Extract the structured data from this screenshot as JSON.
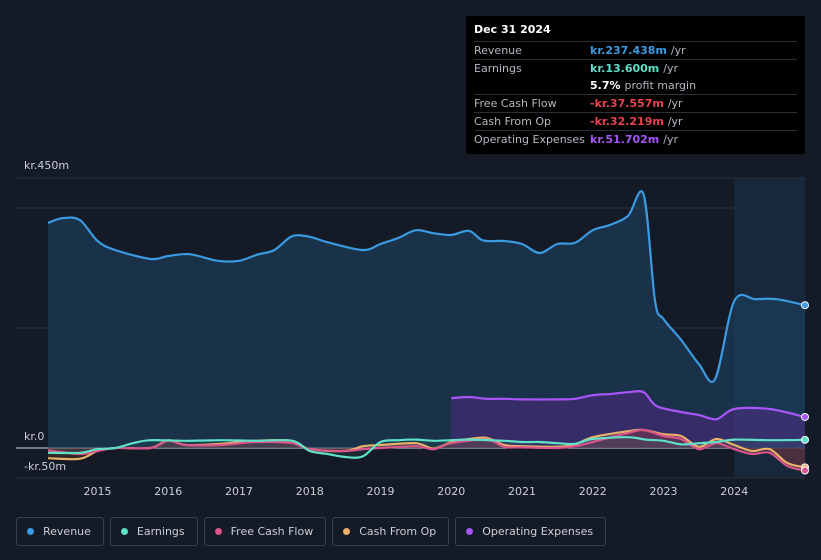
{
  "tooltip": {
    "date": "Dec 31 2024",
    "rows": [
      {
        "label": "Revenue",
        "value": "kr.237.438m",
        "unit": "/yr",
        "color": "#3b9ae1"
      },
      {
        "label": "Earnings",
        "value": "kr.13.600m",
        "unit": "/yr",
        "color": "#5fe0c8"
      },
      {
        "label": "",
        "value": "5.7%",
        "unit": "profit margin",
        "color": "#ffffff"
      },
      {
        "label": "Free Cash Flow",
        "value": "-kr.37.557m",
        "unit": "/yr",
        "color": "#e8434e"
      },
      {
        "label": "Cash From Op",
        "value": "-kr.32.219m",
        "unit": "/yr",
        "color": "#e8434e"
      },
      {
        "label": "Operating Expenses",
        "value": "kr.51.702m",
        "unit": "/yr",
        "color": "#a855f7"
      }
    ]
  },
  "legend": [
    {
      "label": "Revenue",
      "color": "#3b9ae1"
    },
    {
      "label": "Earnings",
      "color": "#5fe0c8"
    },
    {
      "label": "Free Cash Flow",
      "color": "#d9548a"
    },
    {
      "label": "Cash From Op",
      "color": "#e9b06a"
    },
    {
      "label": "Operating Expenses",
      "color": "#a855f7"
    }
  ],
  "chart_data": {
    "type": "line",
    "y_axis_labels": [
      "kr.450m",
      "kr.0",
      "-kr.50m"
    ],
    "ylim": [
      -50,
      450
    ],
    "xlim": [
      2014.3,
      2025.0
    ],
    "x_ticks": [
      "2015",
      "2016",
      "2017",
      "2018",
      "2019",
      "2020",
      "2021",
      "2022",
      "2023",
      "2024"
    ],
    "forecast_start": 2024.0,
    "series": [
      {
        "name": "Revenue",
        "color": "#3b9ae1",
        "points": [
          [
            2014.3,
            375
          ],
          [
            2014.5,
            383
          ],
          [
            2014.75,
            380
          ],
          [
            2015.0,
            345
          ],
          [
            2015.25,
            330
          ],
          [
            2015.75,
            315
          ],
          [
            2016.0,
            320
          ],
          [
            2016.3,
            323
          ],
          [
            2016.7,
            312
          ],
          [
            2017.0,
            312
          ],
          [
            2017.25,
            322
          ],
          [
            2017.5,
            330
          ],
          [
            2017.75,
            353
          ],
          [
            2018.0,
            352
          ],
          [
            2018.25,
            343
          ],
          [
            2018.75,
            330
          ],
          [
            2019.0,
            340
          ],
          [
            2019.25,
            350
          ],
          [
            2019.5,
            363
          ],
          [
            2019.75,
            358
          ],
          [
            2020.0,
            355
          ],
          [
            2020.25,
            362
          ],
          [
            2020.45,
            346
          ],
          [
            2020.75,
            345
          ],
          [
            2021.0,
            340
          ],
          [
            2021.25,
            325
          ],
          [
            2021.5,
            340
          ],
          [
            2021.75,
            342
          ],
          [
            2022.0,
            363
          ],
          [
            2022.25,
            372
          ],
          [
            2022.5,
            387
          ],
          [
            2022.72,
            422
          ],
          [
            2022.88,
            245
          ],
          [
            2023.0,
            215
          ],
          [
            2023.25,
            180
          ],
          [
            2023.5,
            140
          ],
          [
            2023.73,
            115
          ],
          [
            2024.0,
            245
          ],
          [
            2024.3,
            248
          ],
          [
            2024.6,
            248
          ],
          [
            2025.0,
            238
          ]
        ]
      },
      {
        "name": "Earnings",
        "color": "#5fe0c8",
        "points": [
          [
            2014.3,
            -8
          ],
          [
            2014.75,
            -8
          ],
          [
            2015.0,
            -2
          ],
          [
            2015.25,
            0
          ],
          [
            2015.5,
            8
          ],
          [
            2015.75,
            13
          ],
          [
            2016.25,
            12
          ],
          [
            2016.75,
            13
          ],
          [
            2017.25,
            12
          ],
          [
            2017.75,
            12
          ],
          [
            2018.0,
            -5
          ],
          [
            2018.25,
            -10
          ],
          [
            2018.5,
            -15
          ],
          [
            2018.75,
            -14
          ],
          [
            2019.0,
            10
          ],
          [
            2019.25,
            13
          ],
          [
            2019.5,
            14
          ],
          [
            2019.75,
            12
          ],
          [
            2020.0,
            13
          ],
          [
            2020.25,
            14
          ],
          [
            2020.75,
            12
          ],
          [
            2021.0,
            10
          ],
          [
            2021.25,
            10
          ],
          [
            2021.5,
            8
          ],
          [
            2021.75,
            7
          ],
          [
            2022.0,
            15
          ],
          [
            2022.5,
            18
          ],
          [
            2022.75,
            14
          ],
          [
            2023.0,
            12
          ],
          [
            2023.25,
            6
          ],
          [
            2023.5,
            8
          ],
          [
            2023.75,
            10
          ],
          [
            2024.0,
            14
          ],
          [
            2024.5,
            13
          ],
          [
            2025.0,
            13.6
          ]
        ]
      },
      {
        "name": "Free Cash Flow",
        "color": "#d9548a",
        "points": [
          [
            2014.3,
            -4
          ],
          [
            2014.75,
            -10
          ],
          [
            2015.0,
            -5
          ],
          [
            2015.25,
            0
          ],
          [
            2015.75,
            0
          ],
          [
            2016.0,
            12
          ],
          [
            2016.25,
            5
          ],
          [
            2016.75,
            5
          ],
          [
            2017.25,
            10
          ],
          [
            2017.75,
            8
          ],
          [
            2018.0,
            -2
          ],
          [
            2018.5,
            -5
          ],
          [
            2018.75,
            -2
          ],
          [
            2019.0,
            0
          ],
          [
            2019.5,
            3
          ],
          [
            2019.75,
            -2
          ],
          [
            2020.0,
            8
          ],
          [
            2020.5,
            14
          ],
          [
            2020.75,
            2
          ],
          [
            2021.0,
            1
          ],
          [
            2021.5,
            0
          ],
          [
            2021.75,
            3
          ],
          [
            2022.0,
            10
          ],
          [
            2022.5,
            25
          ],
          [
            2022.72,
            30
          ],
          [
            2023.0,
            20
          ],
          [
            2023.25,
            15
          ],
          [
            2023.5,
            -2
          ],
          [
            2023.75,
            8
          ],
          [
            2024.0,
            -2
          ],
          [
            2024.25,
            -10
          ],
          [
            2024.5,
            -8
          ],
          [
            2024.75,
            -30
          ],
          [
            2025.0,
            -37.6
          ]
        ]
      },
      {
        "name": "Cash From Op",
        "color": "#e9b06a",
        "points": [
          [
            2014.3,
            -17
          ],
          [
            2014.75,
            -18
          ],
          [
            2015.0,
            -5
          ],
          [
            2015.25,
            0
          ],
          [
            2015.75,
            0
          ],
          [
            2016.0,
            13
          ],
          [
            2016.25,
            5
          ],
          [
            2016.75,
            7
          ],
          [
            2017.25,
            12
          ],
          [
            2017.75,
            12
          ],
          [
            2018.0,
            -2
          ],
          [
            2018.5,
            -5
          ],
          [
            2018.75,
            3
          ],
          [
            2019.0,
            5
          ],
          [
            2019.5,
            8
          ],
          [
            2019.75,
            -1
          ],
          [
            2020.0,
            10
          ],
          [
            2020.25,
            15
          ],
          [
            2020.5,
            17
          ],
          [
            2020.75,
            5
          ],
          [
            2021.0,
            3
          ],
          [
            2021.5,
            2
          ],
          [
            2021.75,
            6
          ],
          [
            2022.0,
            18
          ],
          [
            2022.5,
            28
          ],
          [
            2022.72,
            30
          ],
          [
            2023.0,
            23
          ],
          [
            2023.25,
            20
          ],
          [
            2023.5,
            2
          ],
          [
            2023.75,
            15
          ],
          [
            2024.0,
            5
          ],
          [
            2024.25,
            -5
          ],
          [
            2024.5,
            -2
          ],
          [
            2024.75,
            -25
          ],
          [
            2025.0,
            -32.2
          ]
        ]
      },
      {
        "name": "Operating Expenses",
        "color": "#a855f7",
        "points": [
          [
            2020.0,
            83
          ],
          [
            2020.25,
            85
          ],
          [
            2020.5,
            82
          ],
          [
            2020.75,
            82
          ],
          [
            2021.0,
            81
          ],
          [
            2021.5,
            81
          ],
          [
            2021.75,
            82
          ],
          [
            2022.0,
            88
          ],
          [
            2022.25,
            90
          ],
          [
            2022.5,
            93
          ],
          [
            2022.72,
            93
          ],
          [
            2022.9,
            70
          ],
          [
            2023.25,
            60
          ],
          [
            2023.5,
            55
          ],
          [
            2023.75,
            48
          ],
          [
            2024.0,
            65
          ],
          [
            2024.5,
            65
          ],
          [
            2025.0,
            51.7
          ]
        ]
      }
    ]
  }
}
